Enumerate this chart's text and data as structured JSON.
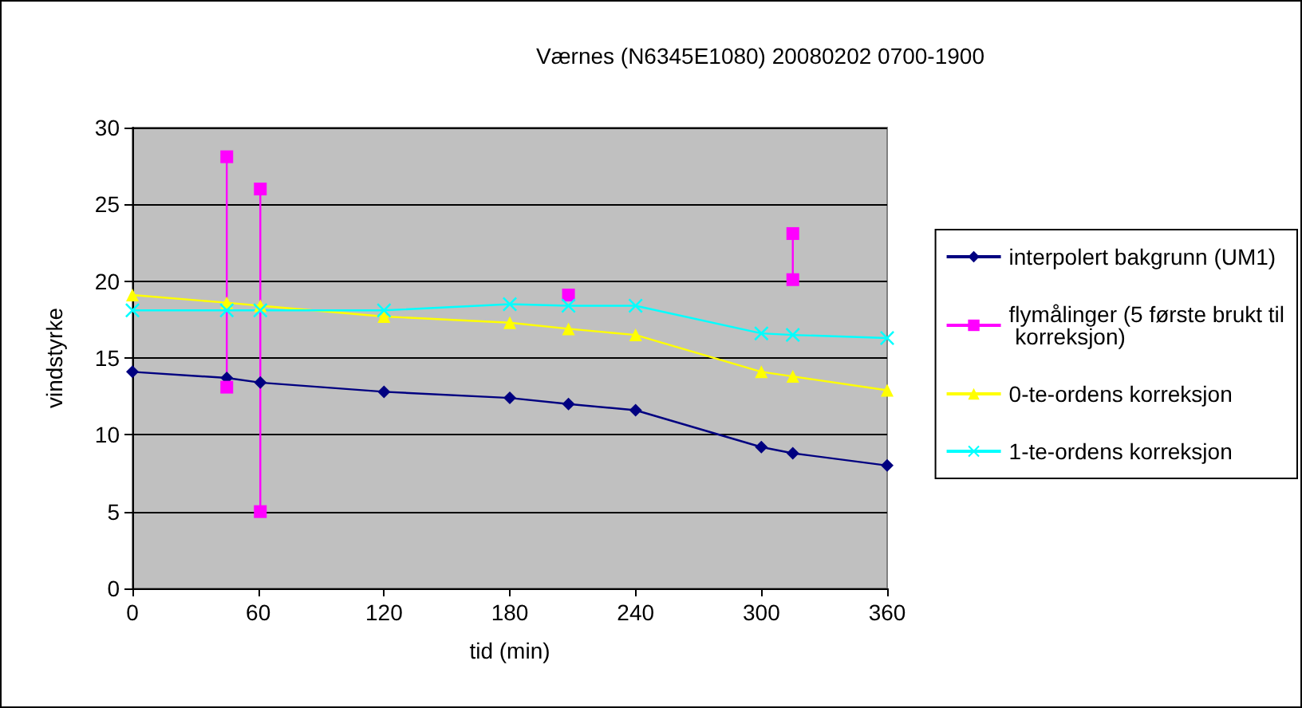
{
  "chart_data": {
    "type": "line",
    "title": "Værnes (N6345E1080) 20080202 0700-1900",
    "xlabel": "tid (min)",
    "ylabel": "vindstyrke",
    "xlim": [
      0,
      360
    ],
    "xticks": [
      0,
      60,
      120,
      180,
      240,
      300,
      360
    ],
    "ylim": [
      0,
      30
    ],
    "yticks": [
      0,
      5,
      10,
      15,
      20,
      25,
      30
    ],
    "grid": "y",
    "legend": "right",
    "series": [
      {
        "name": "interpolert bakgrunn (UM1)",
        "color": "#000080",
        "marker": "diamond",
        "x": [
          0,
          45,
          61,
          120,
          180,
          208,
          240,
          300,
          315,
          360
        ],
        "values": [
          14.1,
          13.7,
          13.4,
          12.8,
          12.4,
          12.0,
          11.6,
          9.2,
          8.8,
          8.0
        ]
      },
      {
        "name": "flymålinger (5 første brukt til korreksjon)",
        "color": "#ff00ff",
        "marker": "square",
        "x": [
          45,
          45,
          53,
          61,
          61,
          135,
          208,
          260,
          315,
          315
        ],
        "values": [
          28.1,
          13.1,
          null,
          26.0,
          5.0,
          null,
          19.1,
          null,
          23.1,
          20.1
        ]
      },
      {
        "name": "0-te-ordens korreksjon",
        "color": "#ffff00",
        "marker": "triangle",
        "x": [
          0,
          45,
          61,
          120,
          180,
          208,
          240,
          300,
          315,
          360
        ],
        "values": [
          19.1,
          18.6,
          18.4,
          17.7,
          17.3,
          16.9,
          16.5,
          14.1,
          13.8,
          12.9
        ]
      },
      {
        "name": "1-te-ordens korreksjon",
        "color": "#00ffff",
        "marker": "cross",
        "x": [
          0,
          45,
          61,
          120,
          180,
          208,
          240,
          300,
          315,
          360
        ],
        "values": [
          18.1,
          18.1,
          18.1,
          18.1,
          18.5,
          18.4,
          18.4,
          16.6,
          16.5,
          16.3
        ]
      }
    ]
  }
}
